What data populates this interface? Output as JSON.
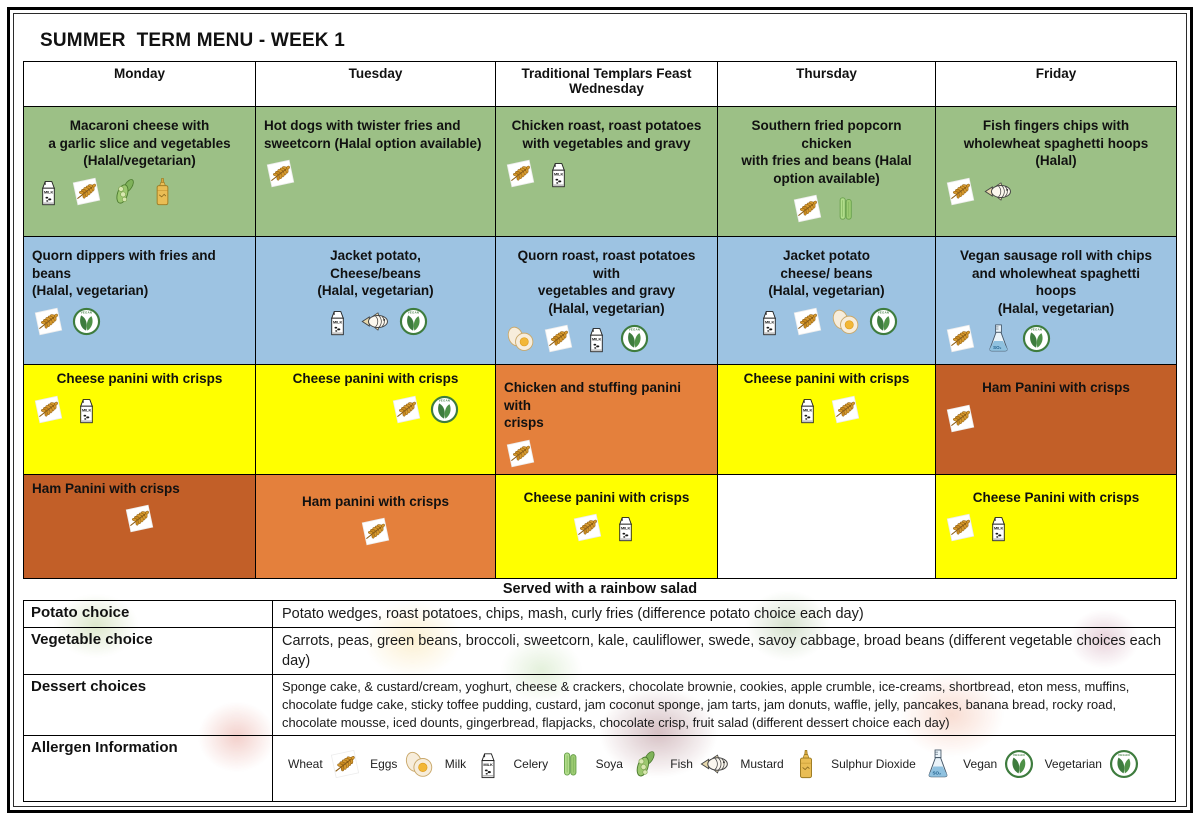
{
  "page": {
    "title": "SUMMER  TERM MENU - WEEK 1"
  },
  "colors": {
    "green": "#9cc086",
    "blue": "#9dc3e2",
    "yellow": "#ffff00",
    "orange_light": "#e4803c",
    "orange_dark": "#c25f28"
  },
  "menu": {
    "headers": [
      "Monday",
      "Tuesday",
      "Traditional Templars Feast\nWednesday",
      "Thursday",
      "Friday"
    ],
    "rows": [
      {
        "cells": [
          {
            "text": "Macaroni cheese with\na garlic slice and vegetables\n(Halal/vegetarian)",
            "icons": [
              "milk-icon",
              "wheat-icon",
              "soya-icon",
              "mustard-icon"
            ]
          },
          {
            "text": "Hot dogs with twister fries and\nsweetcorn (Halal option available)",
            "icons": [
              "wheat-icon"
            ]
          },
          {
            "text": "Chicken roast, roast potatoes\nwith vegetables and gravy",
            "icons": [
              "wheat-icon",
              "milk-icon"
            ]
          },
          {
            "text": "Southern fried popcorn chicken\nwith fries and beans (Halal\noption available)",
            "icons": [
              "wheat-icon",
              "celery-icon"
            ]
          },
          {
            "text": "Fish fingers chips with\nwholewheat spaghetti hoops\n(Halal)",
            "icons": [
              "wheat-icon",
              "fish-icon"
            ]
          }
        ]
      },
      {
        "cells": [
          {
            "text": "Quorn dippers with fries and\nbeans\n(Halal, vegetarian)",
            "icons": [
              "wheat-icon",
              "vegetarian-icon"
            ]
          },
          {
            "text": "Jacket potato,\nCheese/beans\n(Halal, vegetarian)",
            "icons": [
              "milk-icon",
              "fish-icon",
              "vegetarian-icon"
            ]
          },
          {
            "text": "Quorn roast, roast potatoes with\nvegetables and gravy\n(Halal, vegetarian)",
            "icons": [
              "eggs-icon",
              "wheat-icon",
              "milk-icon",
              "vegetarian-icon"
            ]
          },
          {
            "text": "Jacket potato\ncheese/ beans\n(Halal, vegetarian)",
            "icons": [
              "milk-icon",
              "wheat-icon",
              "eggs-icon",
              "vegetarian-icon"
            ]
          },
          {
            "text": "Vegan sausage roll with chips\nand wholewheat spaghetti\nhoops\n(Halal, vegetarian)",
            "icons": [
              "wheat-icon",
              "sulphur-dioxide-icon",
              "vegan-icon"
            ]
          }
        ]
      },
      {
        "cells": [
          {
            "text": "Cheese panini with crisps",
            "icons": [
              "wheat-icon",
              "milk-icon"
            ]
          },
          {
            "text": "Cheese panini with crisps",
            "icons": [
              "wheat-icon",
              "vegetarian-icon"
            ]
          },
          {
            "text": "Chicken and stuffing panini with\ncrisps",
            "icons": [
              "wheat-icon"
            ]
          },
          {
            "text": "Cheese panini with crisps",
            "icons": [
              "milk-icon",
              "wheat-icon"
            ]
          },
          {
            "text": "Ham Panini with crisps",
            "icons": [
              "wheat-icon"
            ]
          }
        ]
      },
      {
        "cells": [
          {
            "text": "Ham Panini with crisps",
            "icons": [
              "wheat-icon"
            ]
          },
          {
            "text": "Ham panini with crisps",
            "icons": [
              "wheat-icon"
            ]
          },
          {
            "text": "Cheese panini with crisps",
            "icons": [
              "wheat-icon",
              "milk-icon"
            ]
          },
          {
            "text": "",
            "icons": []
          },
          {
            "text": "Cheese Panini with crisps",
            "icons": [
              "wheat-icon",
              "milk-icon"
            ]
          }
        ]
      }
    ]
  },
  "served_note": "Served with a rainbow salad",
  "info": {
    "rows": [
      {
        "label": "Potato choice",
        "value": "Potato wedges, roast potatoes, chips, mash, curly fries (difference potato choice each day)"
      },
      {
        "label": "Vegetable choice",
        "value": "Carrots, peas, green beans, broccoli, sweetcorn, kale, cauliflower, swede, savoy cabbage, broad beans (different vegetable choices each day)"
      },
      {
        "label": "Dessert choices",
        "value": "Sponge cake, & custard/cream, yoghurt, cheese & crackers, chocolate brownie, cookies, apple crumble, ice-creams, shortbread, eton mess, muffins, chocolate fudge cake, sticky toffee pudding, custard, jam coconut sponge, jam tarts, jam donuts, waffle, jelly, pancakes, banana bread, rocky road, chocolate mousse, iced dounts, gingerbread, flapjacks, chocolate crisp, fruit salad (different dessert choice each day)"
      },
      {
        "label": "Allergen Information",
        "value": ""
      }
    ]
  },
  "allergen_legend": [
    {
      "label": "Wheat",
      "icons": [
        "wheat-icon"
      ]
    },
    {
      "label": "Eggs",
      "icons": [
        "eggs-icon"
      ]
    },
    {
      "label": "Milk",
      "icons": [
        "milk-icon"
      ]
    },
    {
      "label": "Celery",
      "icons": [
        "celery-icon"
      ]
    },
    {
      "label": "Soya",
      "icons": [
        "soya-icon"
      ]
    },
    {
      "label": "Fish",
      "icons": [
        "fish-icon"
      ]
    },
    {
      "label": "Mustard",
      "icons": [
        "mustard-icon"
      ]
    },
    {
      "label": "Sulphur Dioxide",
      "icons": [
        "sulphur-dioxide-icon"
      ]
    },
    {
      "label": "Vegan",
      "icons": [
        "vegan-icon"
      ]
    },
    {
      "label": "Vegetarian",
      "icons": [
        "vegetarian-icon"
      ]
    }
  ]
}
